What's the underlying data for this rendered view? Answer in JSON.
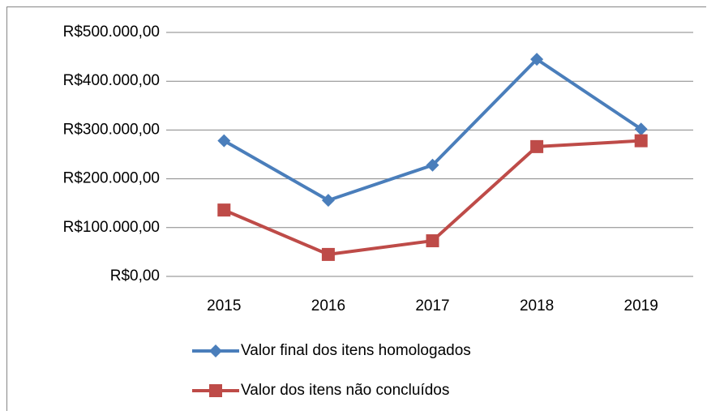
{
  "chart_data": {
    "type": "line",
    "categories": [
      "2015",
      "2016",
      "2017",
      "2018",
      "2019"
    ],
    "series": [
      {
        "name": "Valor final dos itens homologados",
        "color": "#4a7ebb",
        "marker": "diamond",
        "values": [
          278000,
          156000,
          228000,
          445000,
          302000
        ]
      },
      {
        "name": "Valor dos itens não concluídos",
        "color": "#be4b48",
        "marker": "square",
        "values": [
          136000,
          45000,
          73000,
          266000,
          278000
        ]
      }
    ],
    "ylim": [
      0,
      500000
    ],
    "yticks": [
      {
        "value": 0,
        "label": "R$0,00"
      },
      {
        "value": 100000,
        "label": "R$100.000,00"
      },
      {
        "value": 200000,
        "label": "R$200.000,00"
      },
      {
        "value": 300000,
        "label": "R$300.000,00"
      },
      {
        "value": 400000,
        "label": "R$400.000,00"
      },
      {
        "value": 500000,
        "label": "R$500.000,00"
      }
    ],
    "grid": true,
    "legend": "bottom"
  }
}
